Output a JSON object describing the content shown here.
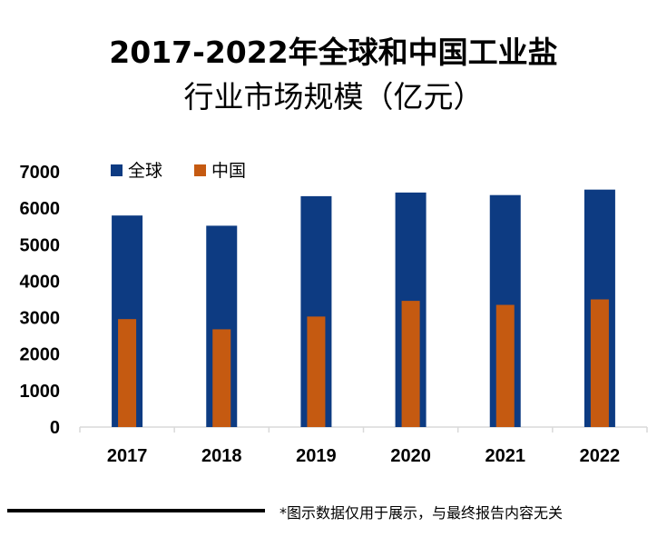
{
  "title_line1": "2017-2022年全球和中国工业盐",
  "title_line2": "行业市场规模（亿元）",
  "footer_note": "*图示数据仅用于展示，与最终报告内容无关",
  "colors": {
    "global": "#0d3b82",
    "china": "#c55a11",
    "axis": "#d9d9d9",
    "text": "#000000"
  },
  "chart_data": {
    "type": "bar",
    "title": "2017-2022年全球和中国工业盐行业市场规模（亿元）",
    "xlabel": "",
    "ylabel": "",
    "ylim": [
      0,
      7000
    ],
    "yticks": [
      "0",
      "1000",
      "2000",
      "3000",
      "4000",
      "5000",
      "6000",
      "7000"
    ],
    "categories": [
      "2017",
      "2018",
      "2019",
      "2020",
      "2021",
      "2022"
    ],
    "series": [
      {
        "name": "全球",
        "values": [
          5800,
          5520,
          6330,
          6430,
          6360,
          6510
        ]
      },
      {
        "name": "中国",
        "values": [
          2960,
          2680,
          3030,
          3460,
          3350,
          3500
        ]
      }
    ],
    "legend_position": "top-left",
    "grid": false
  }
}
